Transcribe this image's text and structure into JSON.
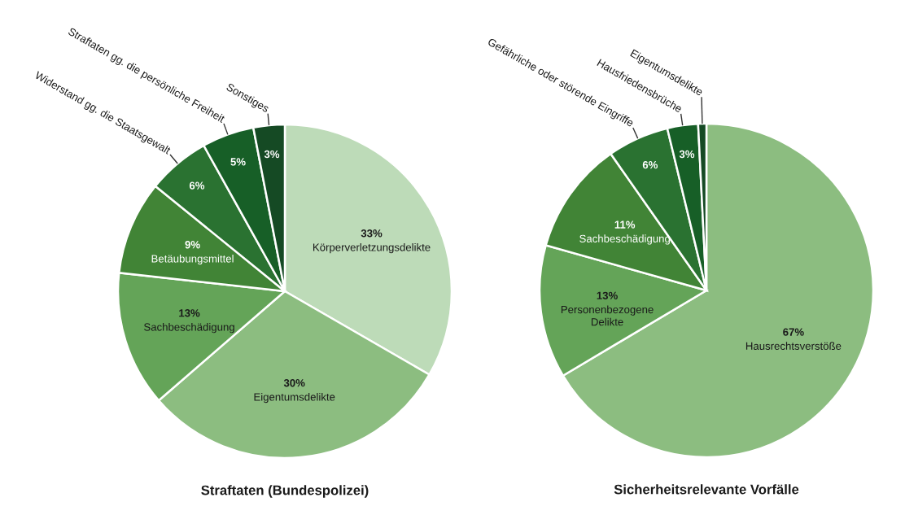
{
  "chart_data": [
    {
      "type": "pie",
      "title": "Straftaten (Bundespolizei)",
      "categories": [
        "Körperverletzungsdelikte",
        "Eigentumsdelikte",
        "Sachbeschädigung",
        "Betäubungsmittel",
        "Widerstand gg. die Staatsgewalt",
        "Straftaten gg. die persönliche Freiheit",
        "Sonstiges"
      ],
      "values": [
        33,
        30,
        13,
        9,
        6,
        5,
        3
      ],
      "colors": [
        "#bddbb8",
        "#8cbd80",
        "#64a458",
        "#418436",
        "#2a7231",
        "#175f27",
        "#154a24"
      ],
      "value_labels": [
        "33%",
        "30%",
        "13%",
        "9%",
        "6%",
        "5%",
        "3%"
      ]
    },
    {
      "type": "pie",
      "title": "Sicherheitsrelevante Vorfälle",
      "categories": [
        "Hausrechtsverstöße",
        "Personenbezogene\nDelikte",
        "Sachbeschädigung",
        "Gefährliche oder störende Eingriffe",
        "Hausfriedensbrüche",
        "Eigentumsdelikte"
      ],
      "values": [
        67,
        13,
        11,
        6,
        3,
        0.8
      ],
      "colors": [
        "#8cbd80",
        "#64a458",
        "#418436",
        "#2a7231",
        "#175f27",
        "#154a24"
      ],
      "value_labels": [
        "67%",
        "13%",
        "11%",
        "6%",
        "3%",
        null
      ]
    }
  ]
}
